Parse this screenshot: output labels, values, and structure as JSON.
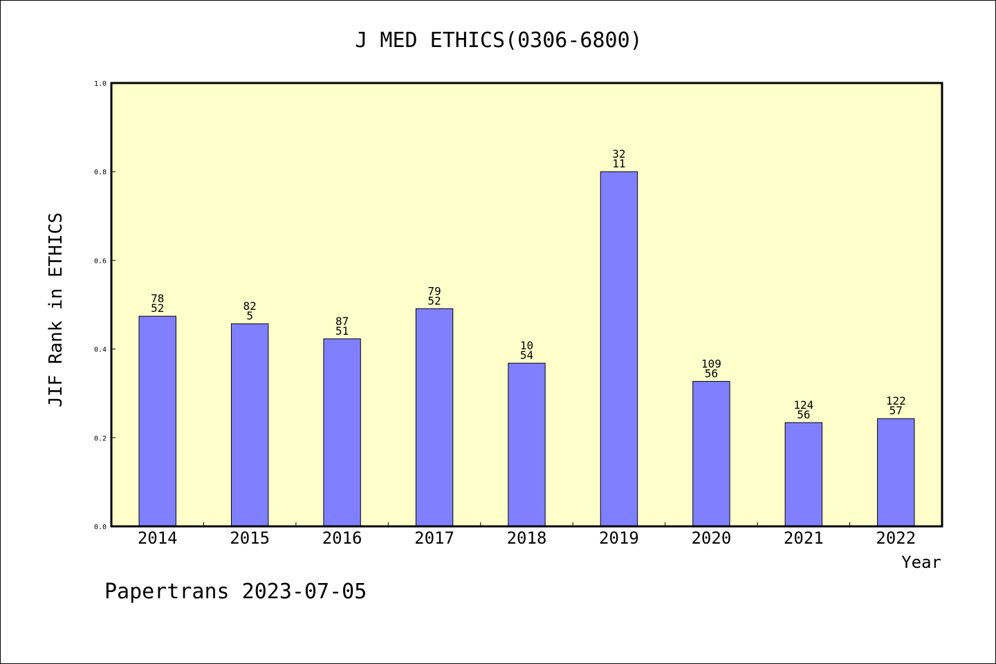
{
  "colors": {
    "plot_background": "#ffffcc",
    "bar_fill": "#8080ff",
    "bar_stroke": "#000000",
    "page_background": "#ffffff"
  },
  "footer": "Papertrans 2023-07-05",
  "chart_data": {
    "type": "bar",
    "title": "J MED ETHICS(0306-6800)",
    "xlabel": "Year",
    "ylabel": "JIF Rank in ETHICS",
    "ylim": [
      0,
      1.0
    ],
    "yticks": [
      "0.0",
      "0.2",
      "0.4",
      "0.6",
      "0.8",
      "1.0"
    ],
    "grid": false,
    "categories": [
      "2014",
      "2015",
      "2016",
      "2017",
      "2018",
      "2019",
      "2020",
      "2021",
      "2022"
    ],
    "values": [
      0.474,
      0.457,
      0.423,
      0.491,
      0.368,
      0.8,
      0.327,
      0.234,
      0.243
    ],
    "labels_top": [
      "78",
      "82",
      "87",
      "79",
      "10",
      "32",
      "109",
      "124",
      "122"
    ],
    "labels_bottom": [
      "52",
      "5",
      "51",
      "52",
      "54",
      "11",
      "56",
      "56",
      "57"
    ]
  }
}
